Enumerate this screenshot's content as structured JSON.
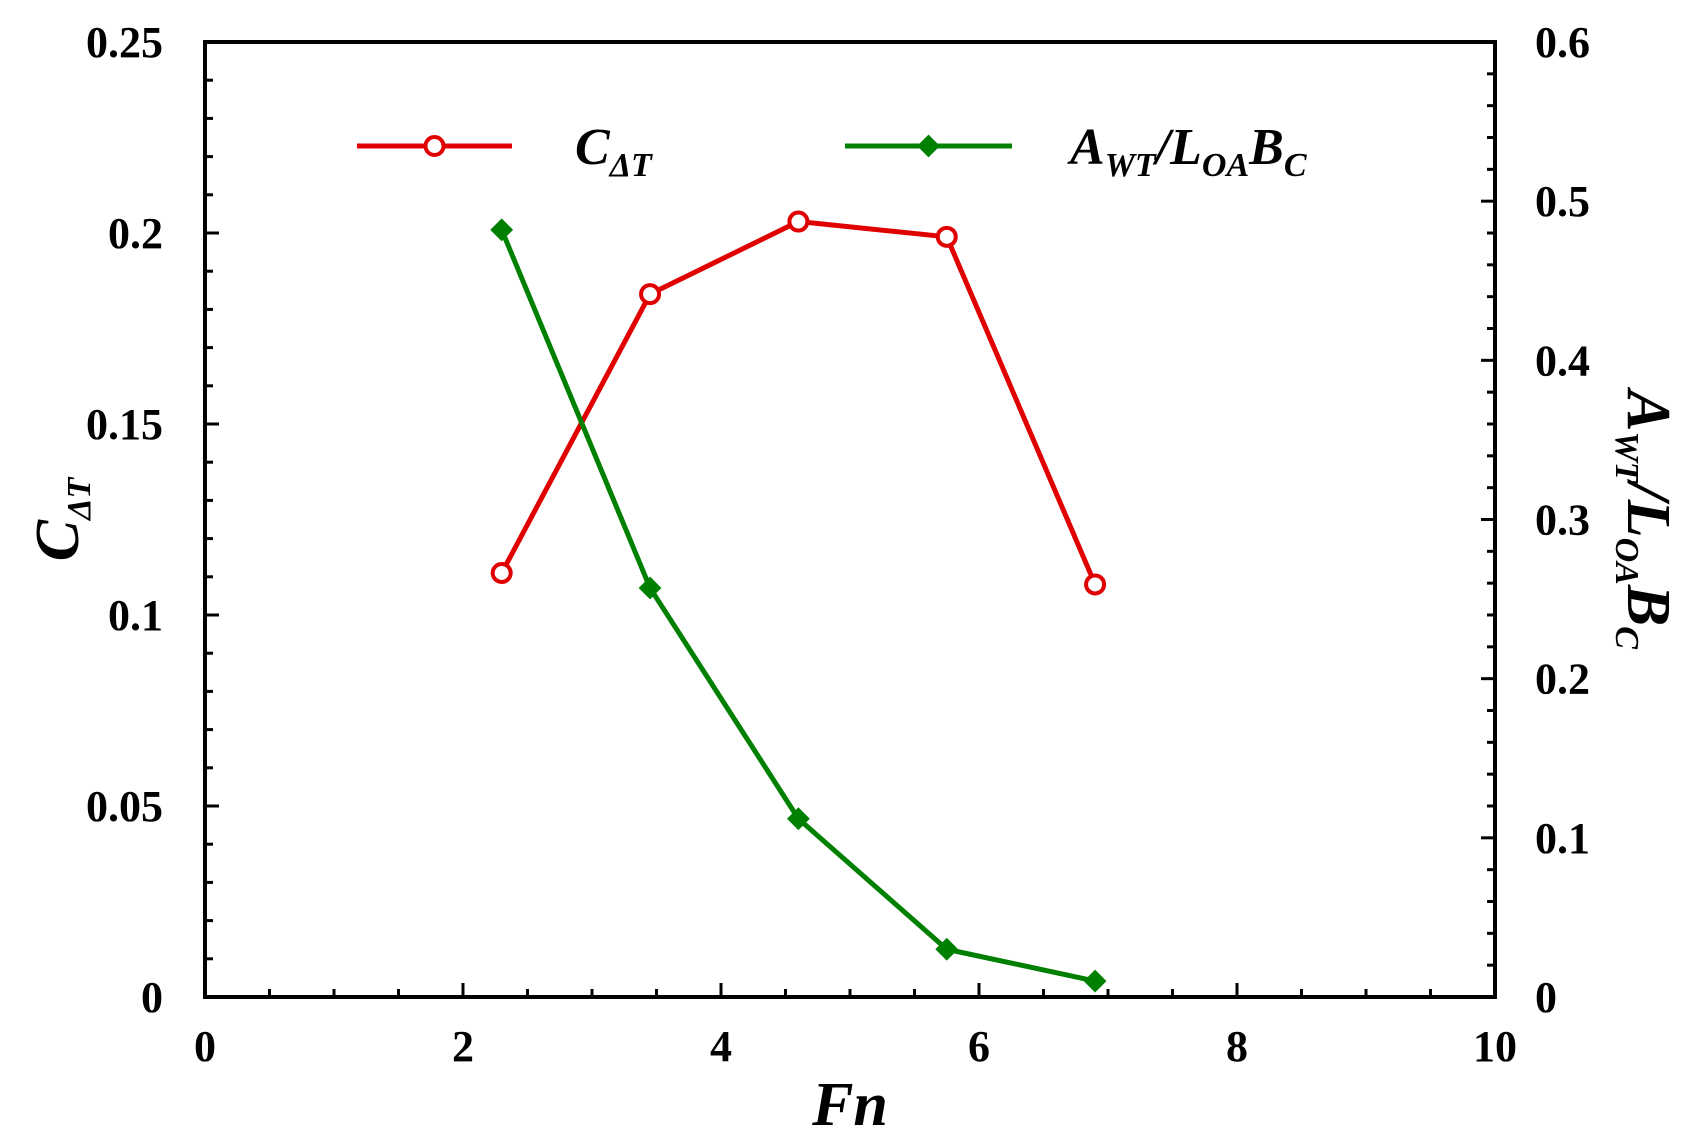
{
  "chart_data": {
    "type": "line",
    "xlabel": "Fn",
    "ylabel_left": {
      "base": "C",
      "sub": "ΔT"
    },
    "ylabel_right": {
      "parts": [
        [
          "A",
          "WT"
        ],
        [
          "/L",
          "OA"
        ],
        [
          "B",
          "C"
        ]
      ]
    },
    "xlim": [
      0,
      10
    ],
    "ylim_left": [
      0,
      0.25
    ],
    "ylim_right": [
      0,
      0.6
    ],
    "x_ticks": [
      "0",
      "2",
      "4",
      "6",
      "8",
      "10"
    ],
    "y_left_ticks": [
      "0",
      "0.05",
      "0.1",
      "0.15",
      "0.2",
      "0.25"
    ],
    "y_right_ticks": [
      "0",
      "0.1",
      "0.2",
      "0.3",
      "0.4",
      "0.5",
      "0.6"
    ],
    "legend_position": "top",
    "grid": false,
    "series": [
      {
        "name": "CΔT",
        "legend_parts": [
          [
            "C",
            "ΔT"
          ]
        ],
        "axis": "left",
        "marker": "circle",
        "color": "#e00000",
        "x": [
          2.3,
          3.45,
          4.6,
          5.75,
          6.9
        ],
        "y": [
          0.111,
          0.184,
          0.203,
          0.199,
          0.108
        ]
      },
      {
        "name": "AWT/LOABC",
        "legend_parts": [
          [
            "A",
            "WT"
          ],
          [
            "/L",
            "OA"
          ],
          [
            "B",
            "C"
          ]
        ],
        "axis": "right",
        "marker": "diamond",
        "color": "#008000",
        "x": [
          2.3,
          3.45,
          4.6,
          5.75,
          6.9
        ],
        "y": [
          0.482,
          0.257,
          0.112,
          0.03,
          0.01
        ]
      }
    ]
  }
}
